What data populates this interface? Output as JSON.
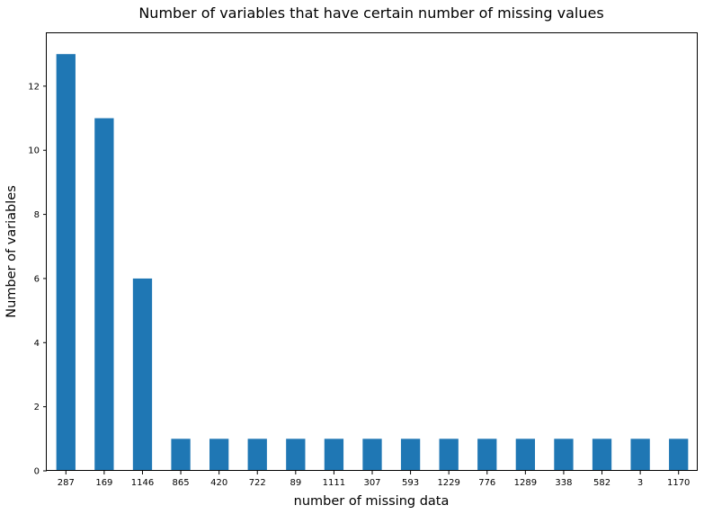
{
  "chart_data": {
    "type": "bar",
    "title": "Number of variables that have certain number of missing values",
    "xlabel": "number of missing data",
    "ylabel": "Number of variables",
    "categories": [
      "287",
      "169",
      "1146",
      "865",
      "420",
      "722",
      "89",
      "1111",
      "307",
      "593",
      "1229",
      "776",
      "1289",
      "338",
      "582",
      "3",
      "1170"
    ],
    "values": [
      13,
      11,
      6,
      1,
      1,
      1,
      1,
      1,
      1,
      1,
      1,
      1,
      1,
      1,
      1,
      1,
      1
    ],
    "ylim": [
      0,
      13.65
    ],
    "yticks": [
      0,
      2,
      4,
      6,
      8,
      10,
      12
    ],
    "grid": false,
    "bar_color": "#1f77b4"
  }
}
